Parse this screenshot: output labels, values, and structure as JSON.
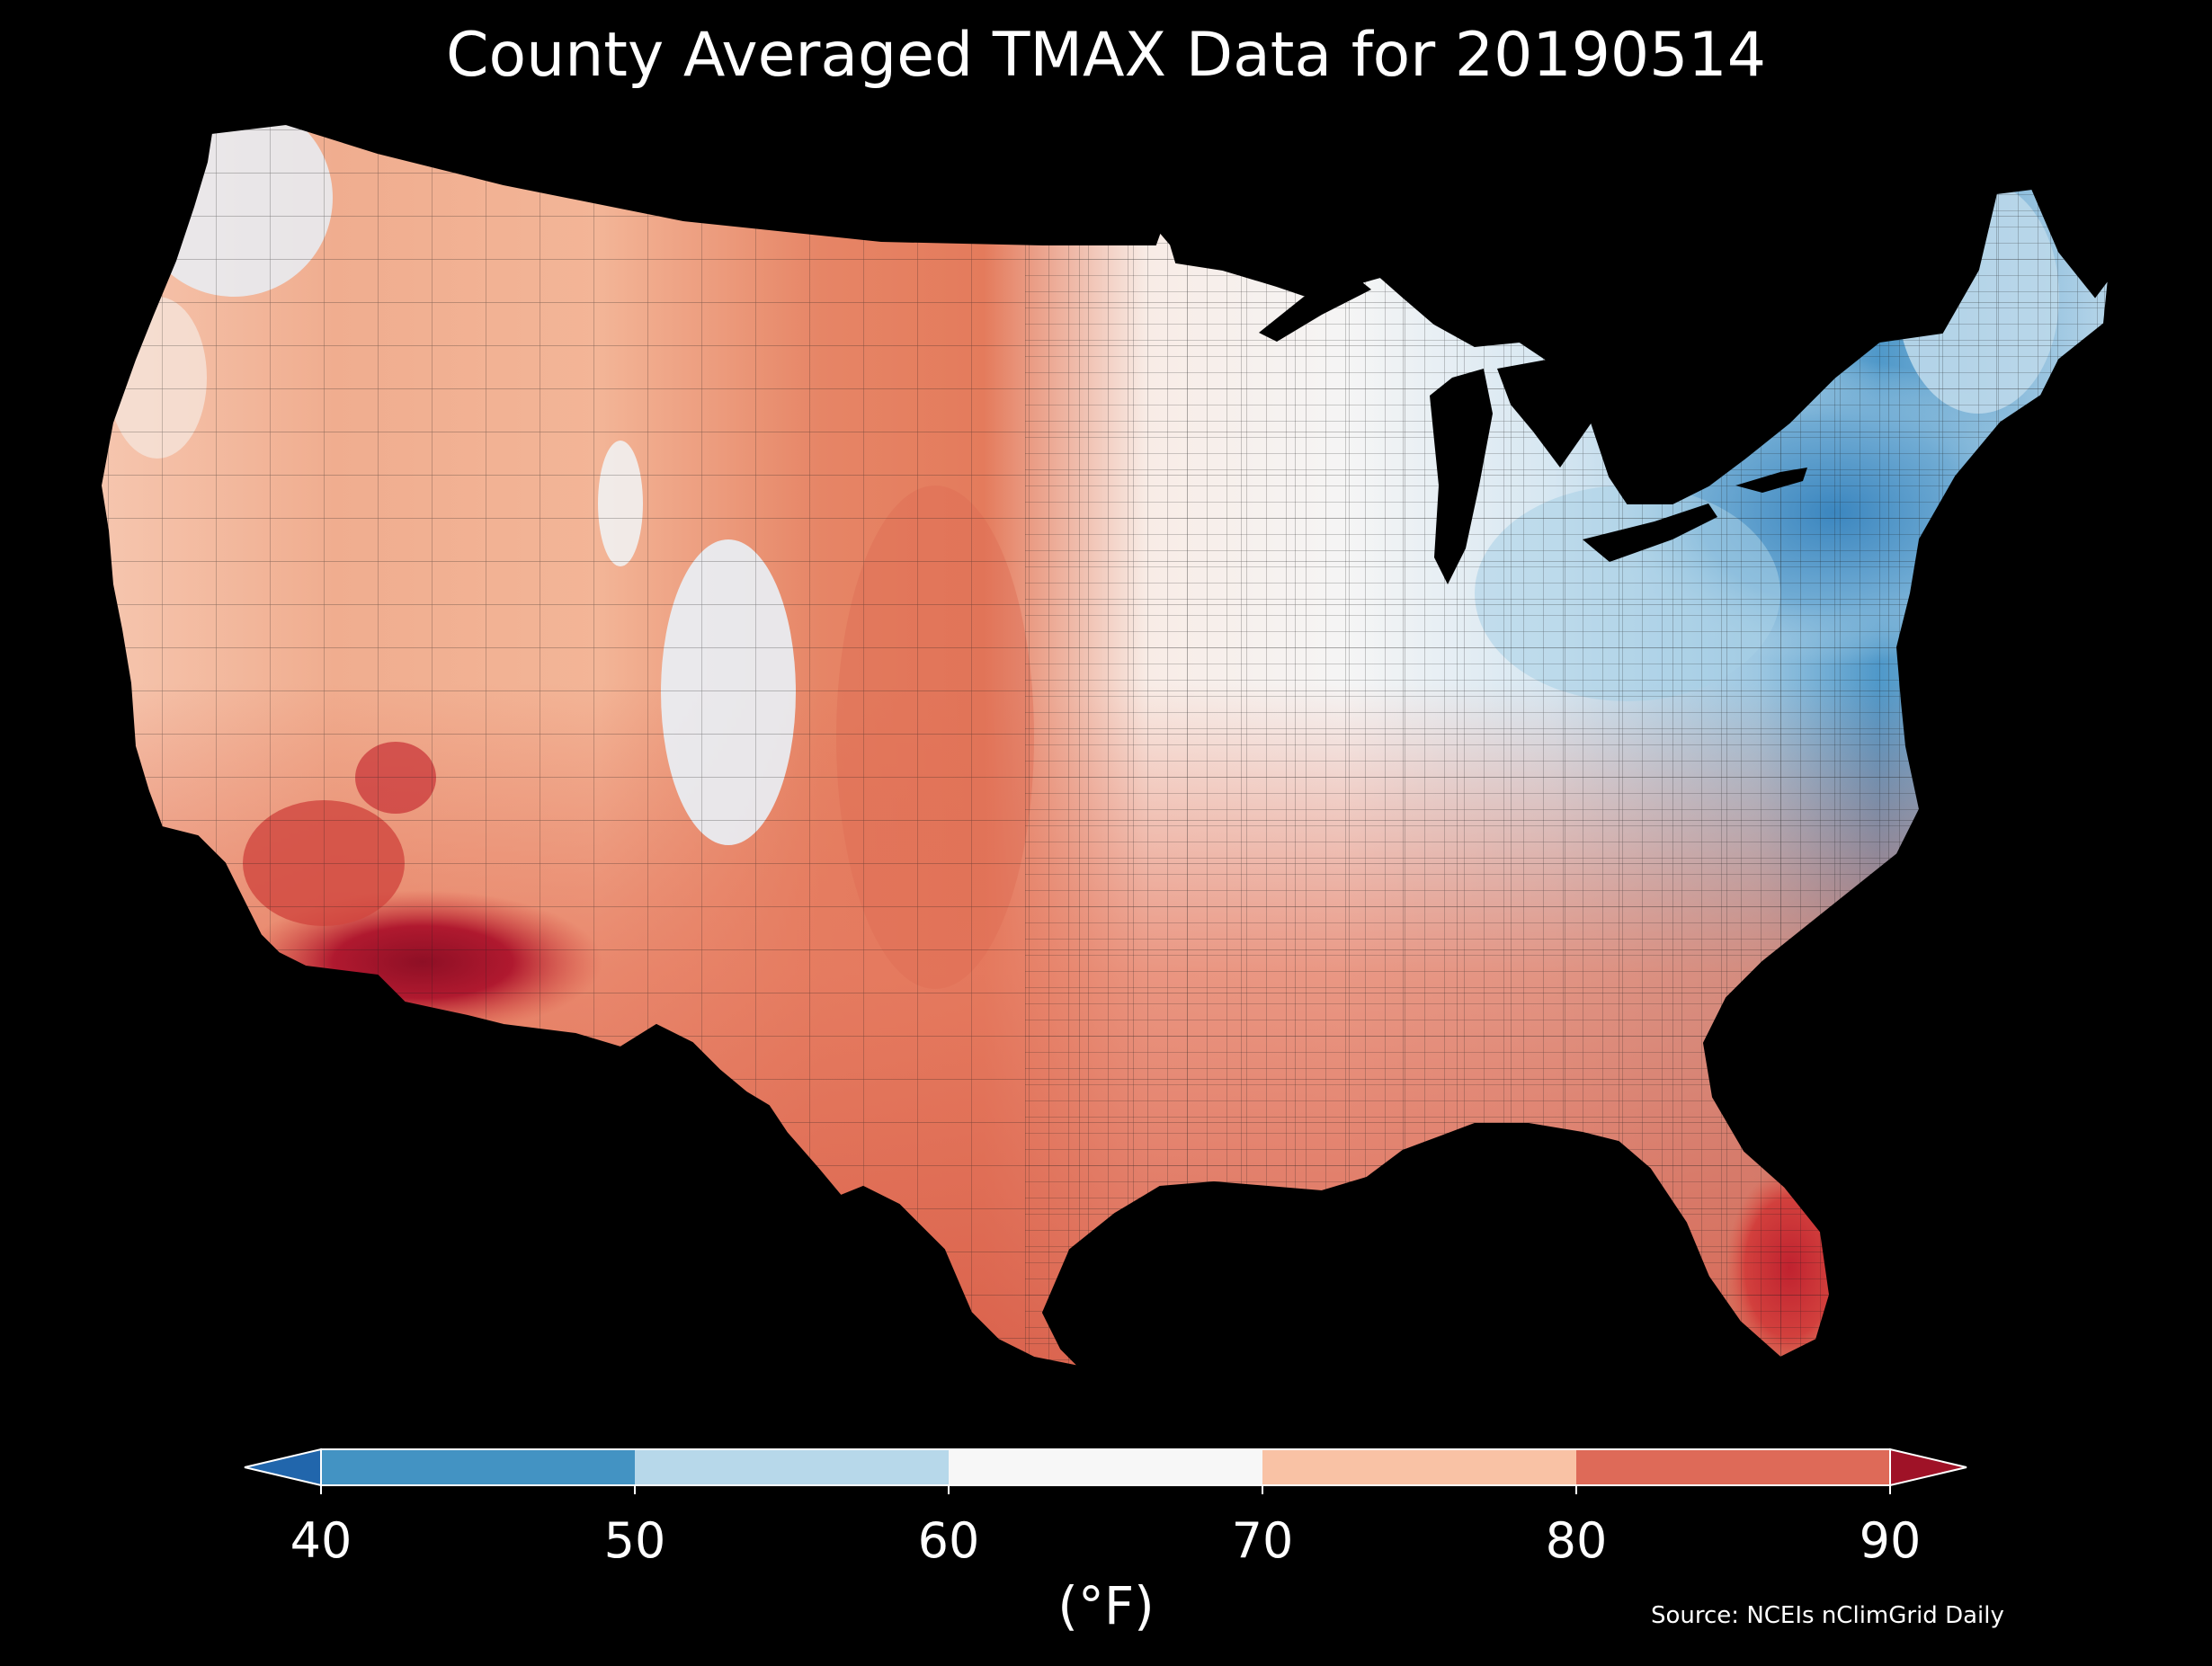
{
  "title": "County Averaged TMAX Data for 20190514",
  "source": "Source: NCEIs nClimGrid Daily",
  "colorbar": {
    "label": "(°F)",
    "ticks": [
      "40",
      "50",
      "60",
      "70",
      "80",
      "90"
    ],
    "bins": [
      {
        "range": "<40",
        "color": "#2166ac"
      },
      {
        "range": "40-50",
        "color": "#4393c3"
      },
      {
        "range": "50-60",
        "color": "#b7d8ea"
      },
      {
        "range": "60-70",
        "color": "#f7f7f7"
      },
      {
        "range": "70-80",
        "color": "#f9c2a5"
      },
      {
        "range": "80-90",
        "color": "#de6a58"
      },
      {
        "range": ">90",
        "color": "#9f1227"
      }
    ]
  },
  "background_color": "#000000",
  "boundary_color": "#1a1a1a"
}
